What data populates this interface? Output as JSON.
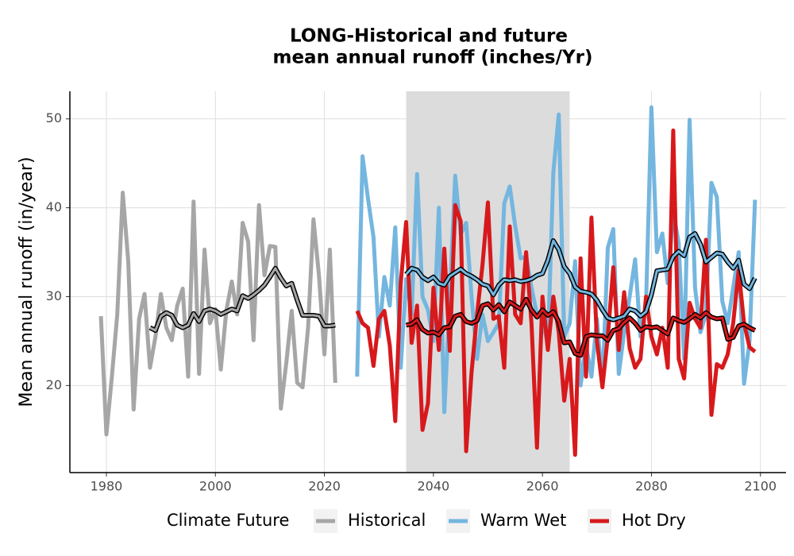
{
  "chart_data": {
    "type": "line",
    "title": [
      "LONG-Historical and future",
      "mean annual runoff (inches/Yr)"
    ],
    "ylabel": "Mean annual runoff (in/year)",
    "legend_title": "Climate Future",
    "legend": "bottom",
    "grid": true,
    "shade": {
      "range": [
        2035,
        2065
      ],
      "color": "#dcdcdc"
    },
    "xlim": [
      1973.3,
      2104.7
    ],
    "ylim": [
      10.2,
      53.1
    ],
    "xticks": [
      1980,
      2000,
      2020,
      2040,
      2060,
      2080,
      2100
    ],
    "yticks": [
      20,
      30,
      40,
      50
    ],
    "series": [
      {
        "name": "Historical",
        "color": "#a6a6a6",
        "x": [
          1979,
          1980,
          1981,
          1982,
          1983,
          1984,
          1985,
          1986,
          1987,
          1988,
          1989,
          1990,
          1991,
          1992,
          1993,
          1994,
          1995,
          1996,
          1997,
          1998,
          1999,
          2000,
          2001,
          2002,
          2003,
          2004,
          2005,
          2006,
          2007,
          2008,
          2009,
          2010,
          2011,
          2012,
          2013,
          2014,
          2015,
          2016,
          2017,
          2018,
          2019,
          2020,
          2021,
          2022
        ],
        "values": [
          27.8,
          14.5,
          21,
          28,
          41.7,
          34,
          17.3,
          27.5,
          30.3,
          22,
          25.5,
          30.3,
          26.5,
          25.1,
          29,
          30.9,
          21,
          40.7,
          21.3,
          35.3,
          27,
          28.6,
          21.8,
          28.4,
          31.7,
          28,
          38.3,
          36.2,
          25.1,
          40.3,
          32.4,
          35.7,
          35.6,
          17.4,
          22.5,
          28.4,
          20.3,
          19.8,
          26.5,
          38.7,
          32.4,
          23.5,
          35.3,
          20.3
        ],
        "smooth": [
          null,
          null,
          null,
          null,
          null,
          null,
          null,
          null,
          null,
          26.5,
          26.2,
          27.8,
          28.2,
          27.9,
          26.8,
          26.5,
          26.8,
          28.1,
          27.2,
          28.4,
          28.6,
          28.4,
          28,
          28.3,
          28.6,
          28.4,
          30.1,
          29.8,
          30.2,
          30.7,
          31.3,
          32.2,
          33.2,
          32.1,
          31.2,
          31.5,
          29.6,
          27.9,
          27.9,
          27.9,
          27.8,
          26.7,
          26.7,
          26.8
        ]
      },
      {
        "name": "Warm Wet",
        "color": "#74b6df",
        "x": [
          2026,
          2027,
          2028,
          2029,
          2030,
          2031,
          2032,
          2033,
          2034,
          2035,
          2036,
          2037,
          2038,
          2039,
          2040,
          2041,
          2042,
          2043,
          2044,
          2045,
          2046,
          2047,
          2048,
          2049,
          2050,
          2051,
          2052,
          2053,
          2054,
          2055,
          2056,
          2057,
          2058,
          2059,
          2060,
          2061,
          2062,
          2063,
          2064,
          2065,
          2066,
          2067,
          2068,
          2069,
          2070,
          2071,
          2072,
          2073,
          2074,
          2075,
          2076,
          2077,
          2078,
          2079,
          2080,
          2081,
          2082,
          2083,
          2084,
          2085,
          2086,
          2087,
          2088,
          2089,
          2090,
          2091,
          2092,
          2093,
          2094,
          2095,
          2096,
          2097,
          2098,
          2099
        ],
        "values": [
          21,
          45.8,
          41,
          36.7,
          25.5,
          32.2,
          29,
          37.8,
          22,
          32,
          28,
          43.8,
          30,
          28.5,
          25,
          40,
          17,
          30,
          43.6,
          37,
          38.3,
          30,
          23,
          28,
          25,
          26,
          27,
          40.5,
          42.4,
          38,
          34.3,
          34.5,
          31,
          28,
          27.5,
          24.5,
          44,
          50.5,
          25.5,
          27,
          34,
          20,
          24.5,
          21,
          27.5,
          20,
          35.5,
          37.6,
          21.3,
          26,
          30,
          34.2,
          25.5,
          29,
          51.3,
          35,
          37.1,
          31.5,
          39.6,
          36,
          23,
          49.9,
          31,
          26,
          28,
          42.8,
          41.2,
          29.5,
          27,
          31,
          35,
          20.2,
          25,
          40.9
        ],
        "smooth": [
          null,
          null,
          null,
          null,
          null,
          null,
          null,
          null,
          null,
          32.5,
          33.2,
          33,
          32.2,
          31.8,
          32.2,
          31.5,
          31.3,
          32.3,
          32.7,
          33.1,
          32.6,
          32.3,
          31.9,
          31.4,
          31.2,
          30.2,
          31.3,
          31.9,
          31.8,
          31.9,
          31.7,
          31.8,
          32,
          32.4,
          32.6,
          34.1,
          36.3,
          35.3,
          33.4,
          32.6,
          31.1,
          30.6,
          30.5,
          30.3,
          29.6,
          28.5,
          27.6,
          27.4,
          27.6,
          27.8,
          28.6,
          28.4,
          27.8,
          28.3,
          30.2,
          32.9,
          33,
          33.1,
          34.5,
          35.1,
          34.6,
          36.7,
          37.1,
          35.9,
          33.9,
          34.4,
          34.9,
          34.8,
          33.9,
          33.2,
          34.1,
          31.4,
          30.9,
          32.1
        ]
      },
      {
        "name": "Hot Dry",
        "color": "#d7191c",
        "x": [
          2026,
          2027,
          2028,
          2029,
          2030,
          2031,
          2032,
          2033,
          2034,
          2035,
          2036,
          2037,
          2038,
          2039,
          2040,
          2041,
          2042,
          2043,
          2044,
          2045,
          2046,
          2047,
          2048,
          2049,
          2050,
          2051,
          2052,
          2053,
          2054,
          2055,
          2056,
          2057,
          2058,
          2059,
          2060,
          2061,
          2062,
          2063,
          2064,
          2065,
          2066,
          2067,
          2068,
          2069,
          2070,
          2071,
          2072,
          2073,
          2074,
          2075,
          2076,
          2077,
          2078,
          2079,
          2080,
          2081,
          2082,
          2083,
          2084,
          2085,
          2086,
          2087,
          2088,
          2089,
          2090,
          2091,
          2092,
          2093,
          2094,
          2095,
          2096,
          2097,
          2098,
          2099
        ],
        "values": [
          28.4,
          27,
          26.5,
          22.2,
          27.5,
          28.4,
          24.5,
          16,
          31.5,
          38.4,
          24.8,
          29,
          15,
          18,
          31,
          24,
          35.4,
          23.9,
          40.3,
          38.5,
          12.6,
          21.5,
          28,
          33.5,
          40.6,
          27.5,
          27.8,
          22,
          37.9,
          28,
          27,
          35,
          27,
          13,
          30,
          24,
          30,
          26,
          18.3,
          23,
          12.2,
          34.3,
          21,
          38.9,
          25,
          19.8,
          25.5,
          33.3,
          24,
          30.5,
          24.2,
          22,
          23,
          30,
          25.5,
          23.5,
          26.5,
          22,
          48.7,
          23,
          20.8,
          29.3,
          27.5,
          26.5,
          36.4,
          16.7,
          22.4,
          22,
          23.5,
          27,
          33,
          27,
          24.3,
          23.8
        ],
        "smooth": [
          null,
          null,
          null,
          null,
          null,
          null,
          null,
          null,
          null,
          26.8,
          26.9,
          27.4,
          26.3,
          25.9,
          26,
          25.7,
          26.5,
          26.6,
          27.8,
          28,
          27.2,
          27,
          27.3,
          29,
          29.2,
          28.5,
          29.1,
          28.3,
          29.4,
          29,
          28.6,
          29.7,
          28.5,
          27.7,
          28.5,
          27.9,
          28.3,
          27.2,
          24.8,
          24.9,
          23.6,
          23.4,
          25.5,
          25.7,
          25.6,
          25.6,
          25.1,
          26.2,
          26.4,
          27.1,
          27.6,
          27,
          26.2,
          26.6,
          26.5,
          26.6,
          26.2,
          25.8,
          27.6,
          27.3,
          27.1,
          27.5,
          28,
          27.6,
          28.2,
          27.7,
          27.5,
          27.6,
          25.2,
          25.4,
          26.7,
          26.9,
          26.5,
          26.2
        ]
      }
    ]
  }
}
